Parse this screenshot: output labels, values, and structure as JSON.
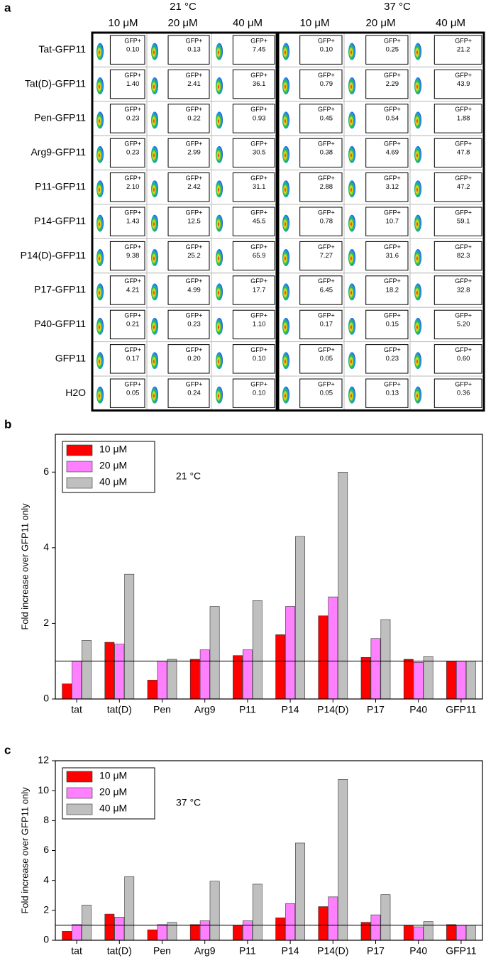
{
  "flow_panel": {
    "panel_label": "a",
    "temperatures": [
      "21 °C",
      "37 °C"
    ],
    "concentrations": [
      "10 μM",
      "20 μM",
      "40 μM",
      "10 μM",
      "20 μM",
      "40 μM"
    ],
    "gate_label": "GFP+",
    "rows": [
      {
        "name": "Tat-GFP11",
        "values": [
          "0.10",
          "0.13",
          "7.45",
          "0.10",
          "0.25",
          "21.2"
        ]
      },
      {
        "name": "Tat(D)-GFP11",
        "values": [
          "1.40",
          "2.41",
          "36.1",
          "0.79",
          "2.29",
          "43.9"
        ]
      },
      {
        "name": "Pen-GFP11",
        "values": [
          "0.23",
          "0.22",
          "0.93",
          "0.45",
          "0.54",
          "1.88"
        ]
      },
      {
        "name": "Arg9-GFP11",
        "values": [
          "0.23",
          "2.99",
          "30.5",
          "0.38",
          "4.69",
          "47.8"
        ]
      },
      {
        "name": "P11-GFP11",
        "values": [
          "2.10",
          "2.42",
          "31.1",
          "2.88",
          "3.12",
          "47.2"
        ]
      },
      {
        "name": "P14-GFP11",
        "values": [
          "1.43",
          "12.5",
          "45.5",
          "0.78",
          "10.7",
          "59.1"
        ]
      },
      {
        "name": "P14(D)-GFP11",
        "values": [
          "9.38",
          "25.2",
          "65.9",
          "7.27",
          "31.6",
          "82.3"
        ]
      },
      {
        "name": "P17-GFP11",
        "values": [
          "4.21",
          "4.99",
          "17.7",
          "6.45",
          "18.2",
          "32.8"
        ]
      },
      {
        "name": "P40-GFP11",
        "values": [
          "0.21",
          "0.23",
          "1.10",
          "0.17",
          "0.15",
          "5.20"
        ]
      },
      {
        "name": "GFP11",
        "values": [
          "0.17",
          "0.20",
          "0.10",
          "0.05",
          "0.23",
          "0.60"
        ]
      },
      {
        "name": "H2O",
        "values": [
          "0.05",
          "0.24",
          "0.10",
          "0.05",
          "0.13",
          "0.36"
        ]
      }
    ]
  },
  "chart_data": [
    {
      "type": "bar",
      "panel_label": "b",
      "annotation": "21 °C",
      "y_label": "Fold increase over GFP11 only",
      "categories": [
        "tat",
        "tat(D)",
        "Pen",
        "Arg9",
        "P11",
        "P14",
        "P14(D)",
        "P17",
        "P40",
        "GFP11"
      ],
      "series": [
        {
          "name": "10 μM",
          "color": "#ff0000",
          "values": [
            0.4,
            1.5,
            0.5,
            1.05,
            1.15,
            1.7,
            2.2,
            1.1,
            1.05,
            1.0
          ]
        },
        {
          "name": "20 μM",
          "color": "#ff80ff",
          "values": [
            1.0,
            1.45,
            1.0,
            1.3,
            1.3,
            2.45,
            2.7,
            1.6,
            0.97,
            1.0
          ]
        },
        {
          "name": "40 μM",
          "color": "#bfbfbf",
          "values": [
            1.55,
            3.3,
            1.05,
            2.45,
            2.6,
            4.3,
            6.0,
            2.1,
            1.12,
            1.0
          ]
        }
      ],
      "ylim": [
        0,
        7
      ],
      "yticks": [
        0,
        2,
        4,
        6
      ],
      "reference_line": 1,
      "legend": "upper left"
    },
    {
      "type": "bar",
      "panel_label": "c",
      "annotation": "37 °C",
      "y_label": "Fold increase over GFP11 only",
      "categories": [
        "tat",
        "tat(D)",
        "Pen",
        "Arg9",
        "P11",
        "P14",
        "P14(D)",
        "P17",
        "P40",
        "GFP11"
      ],
      "series": [
        {
          "name": "10 μM",
          "color": "#ff0000",
          "values": [
            0.6,
            1.75,
            0.7,
            1.05,
            1.0,
            1.5,
            2.25,
            1.2,
            1.0,
            1.05
          ]
        },
        {
          "name": "20 μM",
          "color": "#ff80ff",
          "values": [
            1.05,
            1.55,
            1.05,
            1.3,
            1.3,
            2.45,
            2.9,
            1.7,
            0.9,
            1.0
          ]
        },
        {
          "name": "40 μM",
          "color": "#bfbfbf",
          "values": [
            2.35,
            4.25,
            1.2,
            3.95,
            3.75,
            6.5,
            10.75,
            3.05,
            1.25,
            1.0
          ]
        }
      ],
      "ylim": [
        0,
        12
      ],
      "yticks": [
        0,
        2,
        4,
        6,
        8,
        10,
        12
      ],
      "reference_line": 1,
      "legend": "upper left"
    }
  ]
}
